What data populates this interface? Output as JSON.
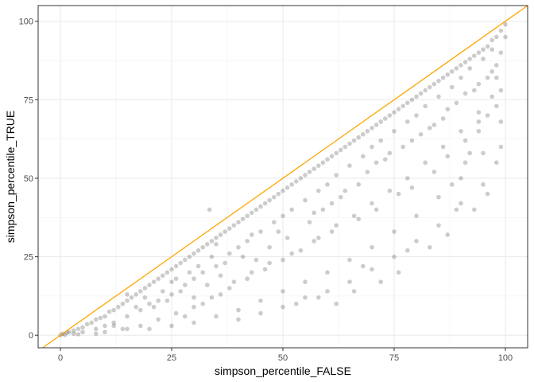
{
  "chart_data": {
    "type": "scatter",
    "title": "",
    "xlabel": "simpson_percentile_FALSE",
    "ylabel": "simpson_percentile_TRUE",
    "xlim": [
      -5,
      105
    ],
    "ylim": [
      -4,
      105
    ],
    "x_ticks": [
      0,
      25,
      50,
      75,
      100
    ],
    "y_ticks": [
      0,
      25,
      50,
      75,
      100
    ],
    "x_tick_labels": [
      "0",
      "25",
      "50",
      "75",
      "100"
    ],
    "y_tick_labels": [
      "0",
      "25",
      "50",
      "75",
      "100"
    ],
    "grid": true,
    "legend": "none",
    "point_color": "#000000",
    "point_alpha": 0.2,
    "reference_line": {
      "type": "identity",
      "slope": 1,
      "intercept": 0,
      "color": "#ffa500"
    },
    "series": [
      {
        "points": [
          [
            2,
            1
          ],
          [
            3,
            1.5
          ],
          [
            4,
            2
          ],
          [
            5,
            2.5
          ],
          [
            6,
            3.5
          ],
          [
            7,
            4
          ],
          [
            8,
            5
          ],
          [
            9,
            5.5
          ],
          [
            10,
            6
          ],
          [
            11,
            7.5
          ],
          [
            12,
            8
          ],
          [
            13,
            9
          ],
          [
            14,
            10
          ],
          [
            15,
            11
          ],
          [
            16,
            12
          ],
          [
            17,
            13
          ],
          [
            18,
            14
          ],
          [
            19,
            15
          ],
          [
            20,
            16
          ],
          [
            21,
            17
          ],
          [
            22,
            18
          ],
          [
            23,
            19
          ],
          [
            24,
            20
          ],
          [
            25,
            21
          ],
          [
            26,
            22
          ],
          [
            27,
            23
          ],
          [
            28,
            24
          ],
          [
            29,
            25
          ],
          [
            30,
            26
          ],
          [
            31,
            27
          ],
          [
            32,
            28
          ],
          [
            33,
            29
          ],
          [
            34,
            30
          ],
          [
            35,
            31
          ],
          [
            36,
            32
          ],
          [
            37,
            33
          ],
          [
            38,
            34
          ],
          [
            39,
            35
          ],
          [
            40,
            36
          ],
          [
            41,
            37
          ],
          [
            42,
            38
          ],
          [
            43,
            39
          ],
          [
            44,
            40
          ],
          [
            45,
            41
          ],
          [
            46,
            42
          ],
          [
            47,
            43
          ],
          [
            48,
            44
          ],
          [
            49,
            45
          ],
          [
            50,
            46
          ],
          [
            51,
            47
          ],
          [
            52,
            48
          ],
          [
            53,
            49
          ],
          [
            54,
            50
          ],
          [
            55,
            51
          ],
          [
            56,
            52
          ],
          [
            57,
            53
          ],
          [
            58,
            54
          ],
          [
            59,
            55
          ],
          [
            60,
            56
          ],
          [
            61,
            57
          ],
          [
            62,
            58
          ],
          [
            63,
            59
          ],
          [
            64,
            60
          ],
          [
            65,
            61
          ],
          [
            66,
            62
          ],
          [
            67,
            63
          ],
          [
            68,
            64
          ],
          [
            69,
            65
          ],
          [
            70,
            66
          ],
          [
            71,
            67
          ],
          [
            72,
            68
          ],
          [
            73,
            69
          ],
          [
            74,
            70
          ],
          [
            75,
            71
          ],
          [
            76,
            72
          ],
          [
            77,
            73
          ],
          [
            78,
            74
          ],
          [
            79,
            75
          ],
          [
            80,
            76
          ],
          [
            81,
            77
          ],
          [
            82,
            78
          ],
          [
            83,
            79
          ],
          [
            84,
            80
          ],
          [
            85,
            81
          ],
          [
            86,
            82
          ],
          [
            87,
            83
          ],
          [
            88,
            84
          ],
          [
            89,
            85
          ],
          [
            90,
            86
          ],
          [
            91,
            87
          ],
          [
            92,
            88
          ],
          [
            93,
            89
          ],
          [
            94,
            90
          ],
          [
            95,
            91
          ],
          [
            96,
            92
          ],
          [
            97,
            94
          ],
          [
            98,
            95
          ],
          [
            99,
            97
          ],
          [
            100,
            99
          ],
          [
            5,
            1
          ],
          [
            8,
            2
          ],
          [
            10,
            3
          ],
          [
            12,
            4
          ],
          [
            15,
            6
          ],
          [
            18,
            8
          ],
          [
            20,
            10
          ],
          [
            22,
            11
          ],
          [
            25,
            13
          ],
          [
            28,
            16
          ],
          [
            30,
            18
          ],
          [
            32,
            20
          ],
          [
            35,
            22
          ],
          [
            38,
            26
          ],
          [
            40,
            28
          ],
          [
            42,
            30
          ],
          [
            45,
            33
          ],
          [
            48,
            36
          ],
          [
            50,
            38
          ],
          [
            52,
            40
          ],
          [
            55,
            43
          ],
          [
            58,
            46
          ],
          [
            60,
            48
          ],
          [
            62,
            51
          ],
          [
            65,
            54
          ],
          [
            68,
            57
          ],
          [
            70,
            60
          ],
          [
            72,
            62
          ],
          [
            75,
            65
          ],
          [
            78,
            68
          ],
          [
            80,
            70
          ],
          [
            82,
            73
          ],
          [
            85,
            76
          ],
          [
            88,
            79
          ],
          [
            90,
            82
          ],
          [
            92,
            85
          ],
          [
            95,
            88
          ],
          [
            97,
            91
          ],
          [
            10,
            1
          ],
          [
            14,
            2
          ],
          [
            18,
            3
          ],
          [
            22,
            5
          ],
          [
            26,
            7
          ],
          [
            30,
            9
          ],
          [
            34,
            12
          ],
          [
            38,
            15
          ],
          [
            42,
            18
          ],
          [
            46,
            21
          ],
          [
            50,
            24
          ],
          [
            54,
            27
          ],
          [
            58,
            31
          ],
          [
            62,
            35
          ],
          [
            66,
            38
          ],
          [
            70,
            42
          ],
          [
            74,
            46
          ],
          [
            78,
            50
          ],
          [
            82,
            55
          ],
          [
            86,
            60
          ],
          [
            90,
            65
          ],
          [
            94,
            71
          ],
          [
            97,
            76
          ],
          [
            20,
            2
          ],
          [
            25,
            3
          ],
          [
            30,
            4
          ],
          [
            35,
            6
          ],
          [
            40,
            8
          ],
          [
            45,
            11
          ],
          [
            50,
            14
          ],
          [
            55,
            17
          ],
          [
            60,
            20
          ],
          [
            65,
            24
          ],
          [
            70,
            28
          ],
          [
            75,
            33
          ],
          [
            80,
            38
          ],
          [
            85,
            44
          ],
          [
            90,
            50
          ],
          [
            95,
            58
          ],
          [
            40,
            5
          ],
          [
            45,
            7
          ],
          [
            50,
            9
          ],
          [
            55,
            12
          ],
          [
            60,
            14
          ],
          [
            65,
            17
          ],
          [
            70,
            21
          ],
          [
            75,
            25
          ],
          [
            80,
            30
          ],
          [
            85,
            35
          ],
          [
            90,
            42
          ],
          [
            95,
            48
          ],
          [
            98,
            55
          ],
          [
            53,
            10
          ],
          [
            58,
            12
          ],
          [
            62,
            10
          ],
          [
            66,
            14
          ],
          [
            68,
            22
          ],
          [
            72,
            17
          ],
          [
            76,
            20
          ],
          [
            78,
            27
          ],
          [
            83,
            28
          ],
          [
            87,
            32
          ],
          [
            89,
            40
          ],
          [
            93,
            40
          ],
          [
            96,
            45
          ],
          [
            99,
            60
          ],
          [
            99,
            68
          ],
          [
            98,
            73
          ],
          [
            94,
            65
          ],
          [
            91,
            55
          ],
          [
            88,
            48
          ],
          [
            92,
            58
          ],
          [
            33.5,
            40
          ],
          [
            12,
            3
          ],
          [
            15,
            2
          ],
          [
            8,
            0.5
          ],
          [
            4,
            0.3
          ],
          [
            1,
            0.1
          ],
          [
            0,
            0
          ],
          [
            0.5,
            0.5
          ],
          [
            1.5,
            0.8
          ],
          [
            3,
            0.5
          ],
          [
            25,
            17
          ],
          [
            27,
            14
          ],
          [
            30,
            12
          ],
          [
            33,
            16
          ],
          [
            36,
            19
          ],
          [
            44,
            24
          ],
          [
            47,
            28
          ],
          [
            56,
            36
          ],
          [
            59,
            40
          ],
          [
            63,
            44
          ],
          [
            67,
            48
          ],
          [
            73,
            56
          ],
          [
            77,
            60
          ],
          [
            81,
            64
          ],
          [
            84,
            67
          ],
          [
            87,
            72
          ],
          [
            93,
            78
          ],
          [
            96,
            82
          ],
          [
            98,
            86
          ],
          [
            99,
            90
          ],
          [
            35,
            29
          ],
          [
            37,
            23
          ],
          [
            41,
            25
          ],
          [
            43,
            32
          ],
          [
            49,
            33
          ],
          [
            51,
            31
          ],
          [
            57,
            39
          ],
          [
            61,
            42
          ],
          [
            64,
            46
          ],
          [
            69,
            52
          ],
          [
            71,
            55
          ],
          [
            74,
            58
          ],
          [
            79,
            62
          ],
          [
            83,
            66
          ],
          [
            86,
            69
          ],
          [
            89,
            74
          ],
          [
            91,
            77
          ],
          [
            94,
            80
          ],
          [
            97,
            84
          ],
          [
            100,
            95
          ],
          [
            15,
            13
          ],
          [
            17,
            9
          ],
          [
            19,
            12
          ],
          [
            21,
            9
          ],
          [
            23,
            14
          ],
          [
            24,
            11
          ],
          [
            26,
            18
          ],
          [
            29,
            20
          ],
          [
            31,
            22
          ],
          [
            34,
            25
          ],
          [
            28,
            6
          ],
          [
            32,
            10
          ],
          [
            36,
            13
          ],
          [
            39,
            17
          ],
          [
            43,
            20
          ],
          [
            47,
            23
          ],
          [
            52,
            26
          ],
          [
            57,
            30
          ],
          [
            61,
            33
          ],
          [
            67,
            37
          ],
          [
            71,
            40
          ],
          [
            76,
            45
          ],
          [
            79,
            47
          ],
          [
            84,
            52
          ],
          [
            87,
            57
          ],
          [
            91,
            62
          ],
          [
            94,
            68
          ],
          [
            96,
            70
          ],
          [
            99,
            78
          ],
          [
            98,
            82
          ]
        ]
      }
    ]
  }
}
